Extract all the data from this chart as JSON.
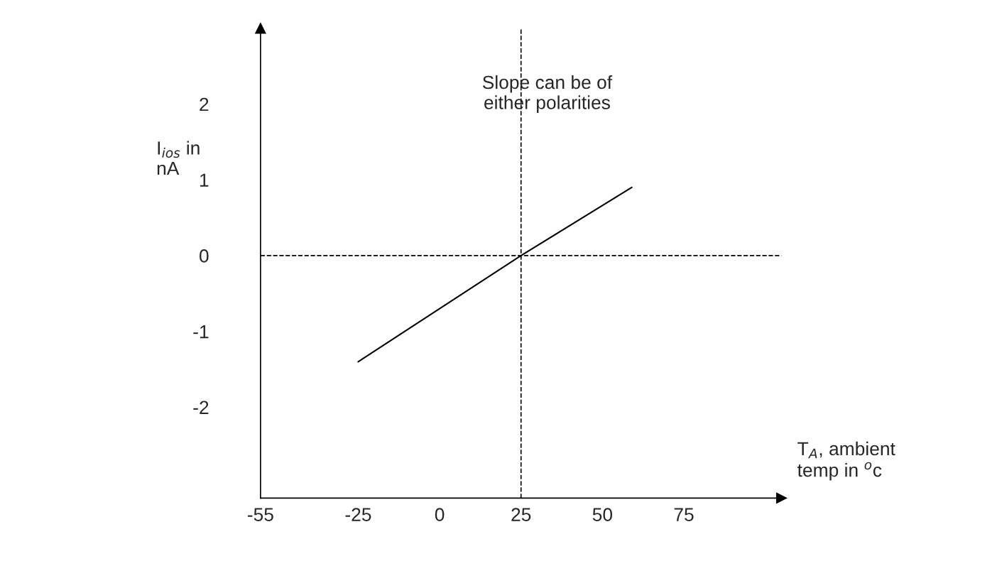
{
  "chart_data": {
    "type": "line",
    "xlabel": "T$_{A}$, ambient\ntemp in $^{o}$c",
    "ylabel": "I$_{ios}$ in\nnA",
    "annotations": [
      "Slope can be of\neither polarities"
    ],
    "x": [
      -25,
      25,
      59
    ],
    "series": [
      {
        "color": "#000000",
        "values": [
          -1.4,
          0,
          0.9
        ]
      }
    ],
    "xlim": [
      -55,
      105
    ],
    "ylim": [
      -3.2,
      3
    ],
    "xticks": [
      -55,
      -25,
      0,
      25,
      50,
      75
    ],
    "yticks": [
      -2,
      -1,
      0,
      1,
      2
    ],
    "ref_lines": [
      {
        "axis": "y",
        "value": 0,
        "line_style": "dashed",
        "color": "#000000"
      },
      {
        "axis": "x",
        "value": 25,
        "line_style": "dashed",
        "color": "#000000"
      }
    ],
    "grid": false,
    "marker": "none",
    "line_style": "solid"
  }
}
